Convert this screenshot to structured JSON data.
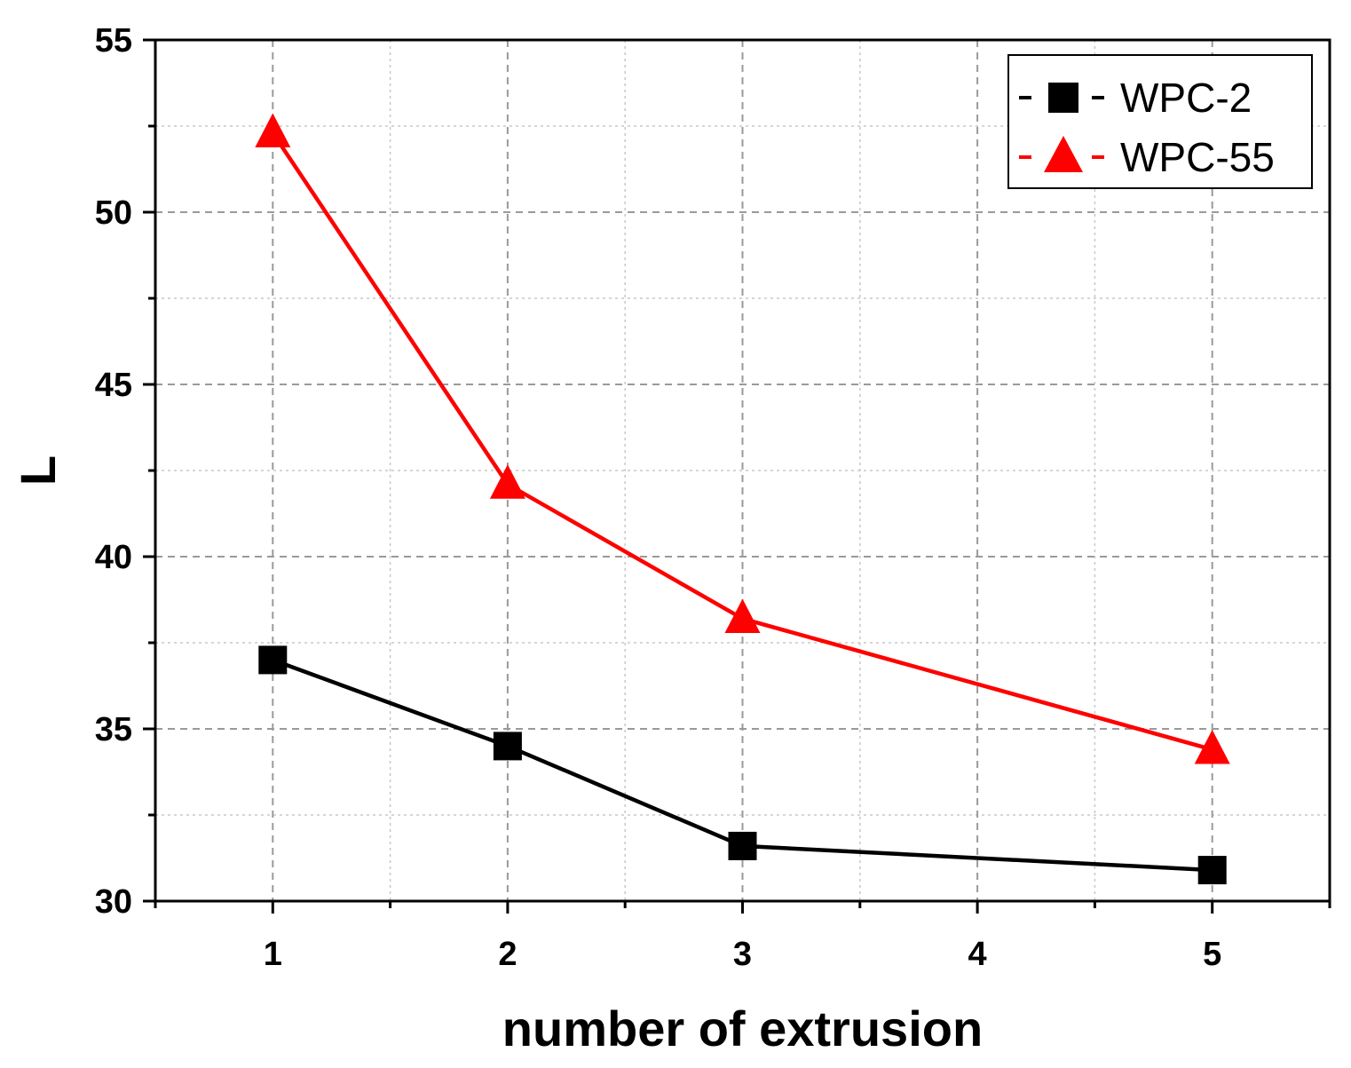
{
  "chart_data": {
    "type": "line",
    "title": "",
    "xlabel": "number of extrusion",
    "ylabel": "L",
    "xlim": [
      0.5,
      5.5
    ],
    "ylim": [
      30,
      55
    ],
    "x_ticks": [
      1,
      2,
      3,
      4,
      5
    ],
    "y_ticks": [
      30,
      35,
      40,
      45,
      50,
      55
    ],
    "grid": true,
    "legend_position": "top-right",
    "series": [
      {
        "name": "WPC-2",
        "color": "#000000",
        "marker": "square",
        "x": [
          1,
          2,
          3,
          5
        ],
        "y": [
          37.0,
          34.5,
          31.6,
          30.9
        ]
      },
      {
        "name": "WPC-55",
        "color": "#ff0000",
        "marker": "triangle",
        "x": [
          1,
          2,
          3,
          5
        ],
        "y": [
          52.3,
          42.1,
          38.2,
          34.4
        ]
      }
    ]
  }
}
